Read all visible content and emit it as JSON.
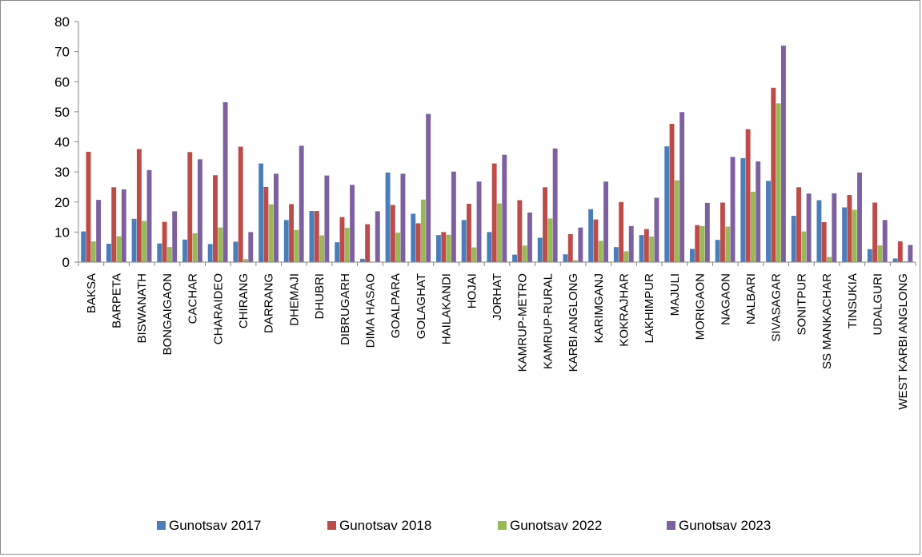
{
  "chart_data": {
    "type": "bar",
    "title": "",
    "xlabel": "",
    "ylabel": "",
    "ylim": [
      0,
      80
    ],
    "yticks": [
      0,
      10,
      20,
      30,
      40,
      50,
      60,
      70,
      80
    ],
    "grid": false,
    "legend_position": "bottom",
    "categories": [
      "BAKSA",
      "BARPETA",
      "BISWANATH",
      "BONGAIGAON",
      "CACHAR",
      "CHARAIDEO",
      "CHIRANG",
      "DARRANG",
      "DHEMAJI",
      "DHUBRI",
      "DIBRUGARH",
      "DIMA HASAO",
      "GOALPARA",
      "GOLAGHAT",
      "HAILAKANDI",
      "HOJAI",
      "JORHAT",
      "KAMRUP-METRO",
      "KAMRUP-RURAL",
      "KARBI ANGLONG",
      "KARIMGANJ",
      "KOKRAJHAR",
      "LAKHIMPUR",
      "MAJULI",
      "MORIGAON",
      "NAGAON",
      "NALBARI",
      "SIVASAGAR",
      "SONITPUR",
      "SS MANKACHAR",
      "TINSUKIA",
      "UDALGURI",
      "WEST KARBI ANGLONG"
    ],
    "series": [
      {
        "name": "Gunotsav 2017",
        "color": "#4a7ebb",
        "values": [
          10.2,
          6.1,
          14.4,
          6.2,
          7.5,
          6.0,
          6.8,
          32.8,
          14.0,
          17.0,
          6.6,
          1.1,
          29.8,
          16.1,
          9.0,
          14.0,
          10.0,
          2.5,
          8.1,
          2.6,
          17.6,
          5.0,
          9.0,
          38.5,
          4.4,
          7.4,
          34.6,
          27.0,
          15.4,
          20.6,
          18.2,
          4.3,
          1.2
        ]
      },
      {
        "name": "Gunotsav 2018",
        "color": "#be4b48",
        "values": [
          36.7,
          24.9,
          37.6,
          13.4,
          36.6,
          28.9,
          38.4,
          25.0,
          19.3,
          17.0,
          15.0,
          12.6,
          19.0,
          12.9,
          10.0,
          19.4,
          32.8,
          20.6,
          24.9,
          9.3,
          14.2,
          20.0,
          11.0,
          46.0,
          12.3,
          19.8,
          44.2,
          58.0,
          24.9,
          13.3,
          22.3,
          19.8,
          6.9
        ]
      },
      {
        "name": "Gunotsav 2022",
        "color": "#98b954",
        "values": [
          6.9,
          8.6,
          13.7,
          5.0,
          9.6,
          11.5,
          1.0,
          19.2,
          10.7,
          8.9,
          11.4,
          0.0,
          9.8,
          20.8,
          9.1,
          4.9,
          19.5,
          5.5,
          14.5,
          0.6,
          7.1,
          3.6,
          8.5,
          27.2,
          12.0,
          11.8,
          23.4,
          52.8,
          10.2,
          1.7,
          17.4,
          5.6,
          0.3
        ]
      },
      {
        "name": "Gunotsav 2023",
        "color": "#7d60a0",
        "values": [
          20.7,
          24.2,
          30.6,
          16.9,
          34.2,
          53.2,
          10.0,
          29.4,
          38.7,
          28.8,
          25.7,
          16.9,
          29.4,
          49.3,
          30.1,
          26.8,
          35.7,
          16.5,
          37.8,
          11.5,
          26.8,
          12.0,
          21.4,
          49.9,
          19.7,
          35.0,
          33.5,
          72.0,
          22.8,
          22.9,
          29.8,
          14.0,
          5.7
        ]
      }
    ]
  }
}
